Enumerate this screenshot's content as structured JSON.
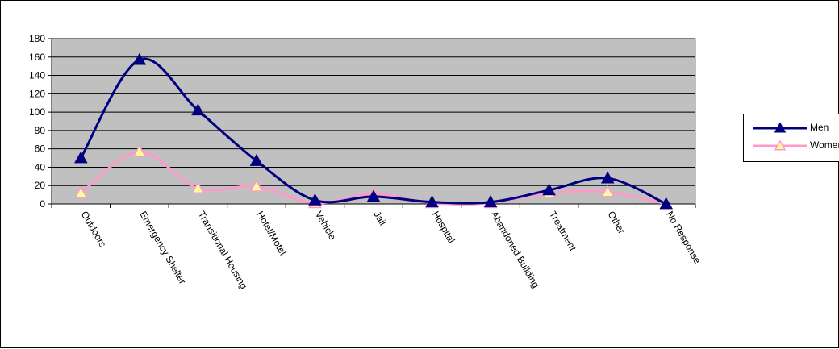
{
  "chart_data": {
    "type": "line",
    "title": "",
    "xlabel": "",
    "ylabel": "",
    "ylim": [
      0,
      180
    ],
    "yticks": [
      0,
      20,
      40,
      60,
      80,
      100,
      120,
      140,
      160,
      180
    ],
    "grid": true,
    "legend_position": "right",
    "categories": [
      "Outdoors",
      "Emergency Shelter",
      "Transitional Housing",
      "Hotel/Motel",
      "Vehicle",
      "Jail",
      "Hospital",
      "Abandoned Building",
      "Treatment",
      "Other",
      "No Response"
    ],
    "series": [
      {
        "name": "Men",
        "color": "#000080",
        "values": [
          50,
          157,
          102,
          47,
          4,
          8,
          2,
          2,
          15,
          28,
          0
        ]
      },
      {
        "name": "Women",
        "color": "#FF99CC",
        "values": [
          12,
          57,
          17,
          19,
          1,
          11,
          1,
          1,
          12,
          13,
          0
        ]
      }
    ],
    "plot_background": "#C0C0C0"
  }
}
